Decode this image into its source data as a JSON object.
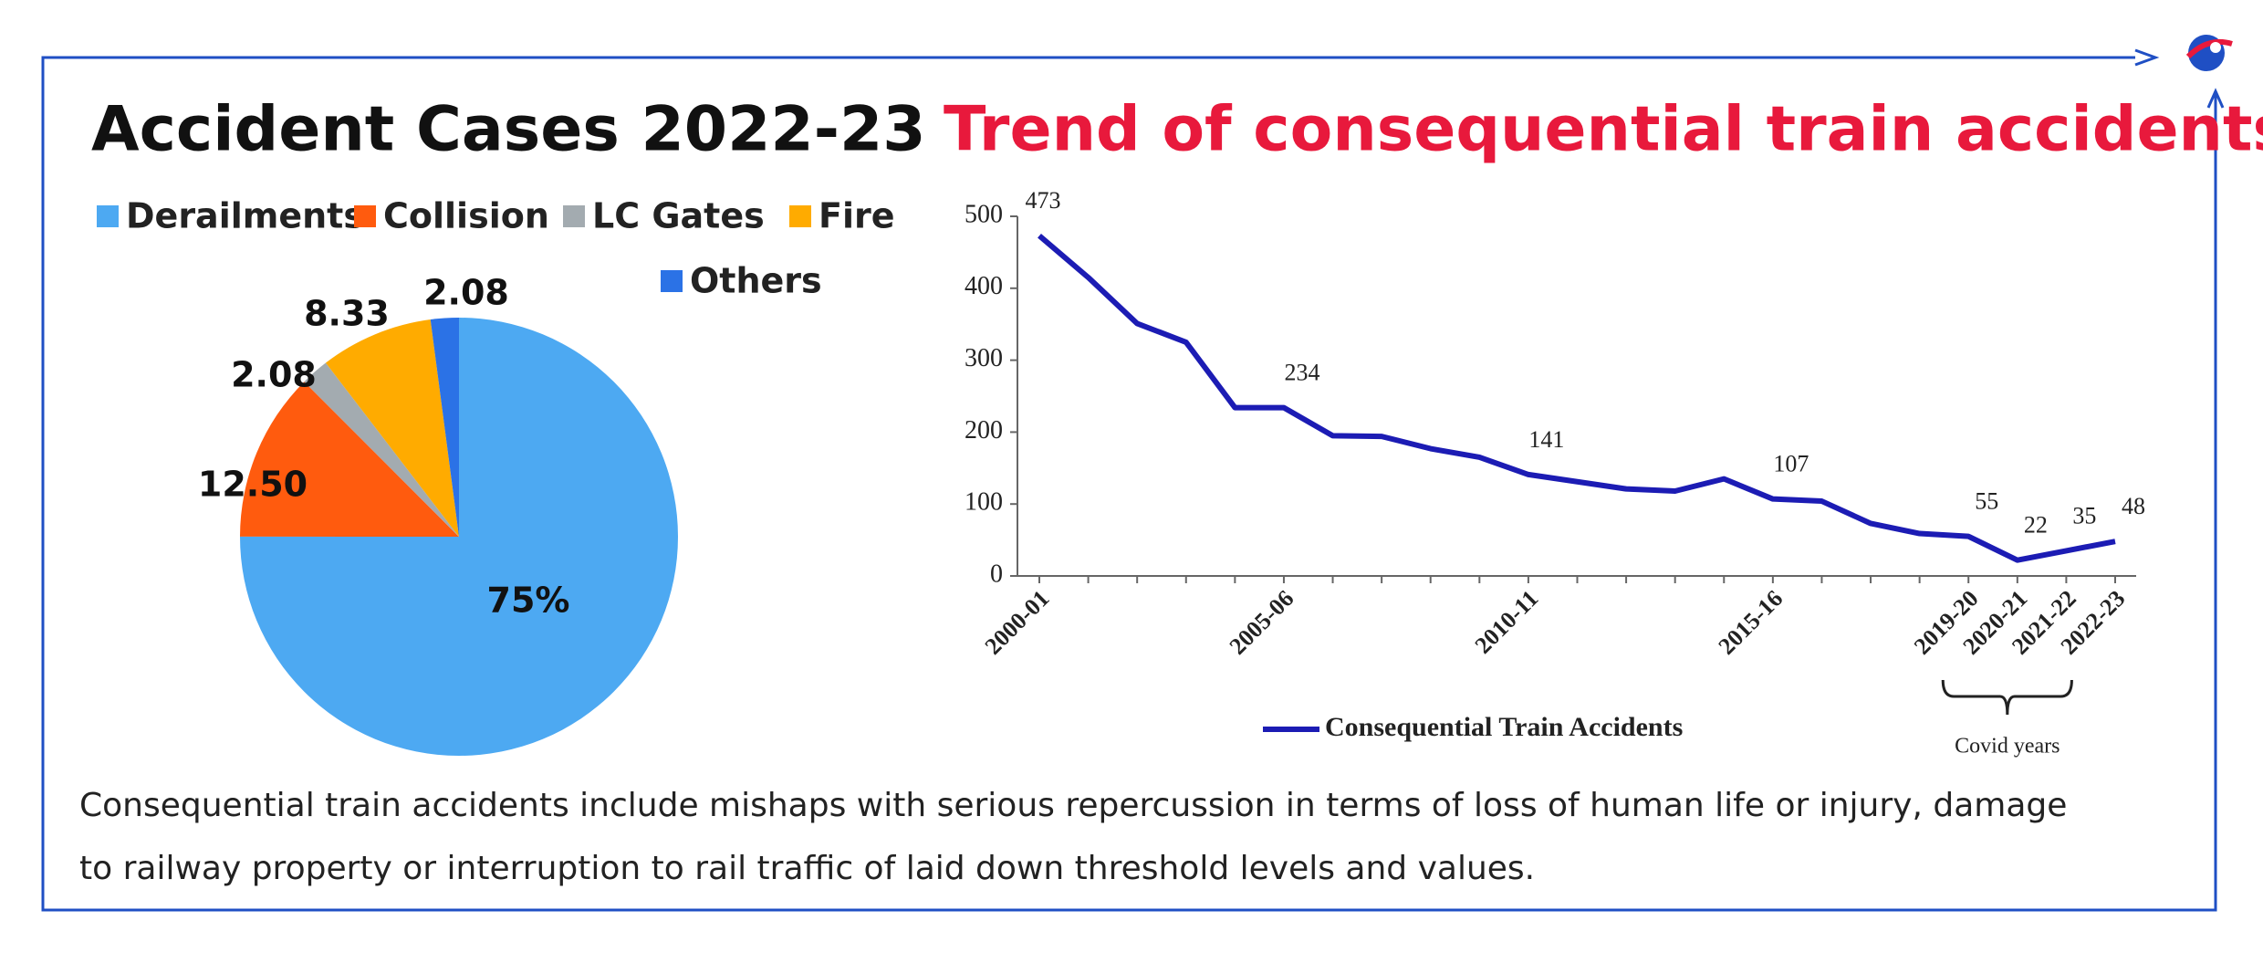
{
  "chart_data": [
    {
      "type": "pie",
      "title": "Accident Cases 2022-23",
      "categories": [
        "Derailments",
        "Collision",
        "LC Gates",
        "Fire",
        "Others"
      ],
      "values": [
        75,
        12.5,
        2.08,
        8.33,
        2.08
      ],
      "value_labels": [
        "75%",
        "12.50",
        "2.08",
        "8.33",
        "2.08"
      ],
      "colors": [
        "#4da9f2",
        "#ff5b0e",
        "#a3abb0",
        "#ffab00",
        "#2b72e6"
      ]
    },
    {
      "type": "line",
      "title": "Trend of consequential train accidents",
      "categories": [
        "2000-01",
        null,
        null,
        null,
        null,
        "2005-06",
        null,
        null,
        null,
        null,
        "2010-11",
        null,
        null,
        null,
        null,
        "2015-16",
        null,
        null,
        null,
        "2019-20",
        "2020-21",
        "2021-22",
        "2022-23"
      ],
      "series": [
        {
          "name": "Consequential Train Accidents",
          "color": "#1c1cb4",
          "values": [
            473,
            415,
            351,
            325,
            234,
            234,
            195,
            194,
            177,
            165,
            141,
            131,
            121,
            118,
            135,
            107,
            104,
            73,
            59,
            55,
            22,
            35,
            48
          ],
          "value_labels": [
            "473",
            null,
            null,
            null,
            null,
            "234",
            null,
            null,
            null,
            null,
            "141",
            null,
            null,
            null,
            null,
            "107",
            null,
            null,
            null,
            "55",
            "22",
            "35",
            "48"
          ]
        }
      ],
      "ylim": [
        0,
        500
      ],
      "yticks": [
        0,
        100,
        200,
        300,
        400,
        500
      ],
      "grid": false,
      "annotation": "Covid years"
    }
  ],
  "footnote": [
    "Consequential train accidents include mishaps with serious repercussion in terms of loss of human life or injury, damage",
    "to railway property or interruption to rail traffic of laid down threshold levels and values."
  ]
}
